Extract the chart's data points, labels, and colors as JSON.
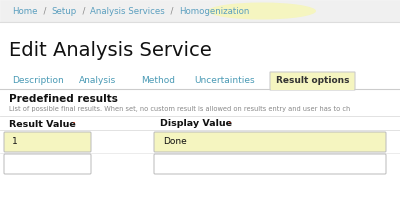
{
  "bg_color": "#ffffff",
  "breadcrumb_parts": [
    "Home",
    " / ",
    "Setup",
    " / ",
    "Analysis Services",
    " / ",
    "Homogenization"
  ],
  "breadcrumb_link_color": "#5b9fbf",
  "breadcrumb_sep_color": "#888888",
  "breadcrumb_highlight_color": "#f5f5c0",
  "title_text": "Edit Analysis Service",
  "title_color": "#111111",
  "tabs": [
    "Description",
    "Analysis",
    "Method",
    "Uncertainties",
    "Result options"
  ],
  "tab_color": "#4a9ab5",
  "active_tab": "Result options",
  "active_tab_color": "#333333",
  "active_tab_bg": "#f5f5c0",
  "active_tab_border": "#cccccc",
  "section_title": "Predefined results",
  "section_desc": "List of possible final results. When set, no custom result is allowed on results entry and user has to ch",
  "col1_header": "Result Value",
  "col2_header": "Display Value",
  "required_dot_color": "#cc2200",
  "input1_value": "1",
  "input2_value": "Done",
  "input_highlight_color": "#f5f5c0",
  "input_border_color": "#bbbbbb",
  "top_bar_bg": "#f0f0f0",
  "separator_color": "#dddddd",
  "tab_separator_color": "#cccccc",
  "text_gray": "#888888",
  "white": "#ffffff"
}
